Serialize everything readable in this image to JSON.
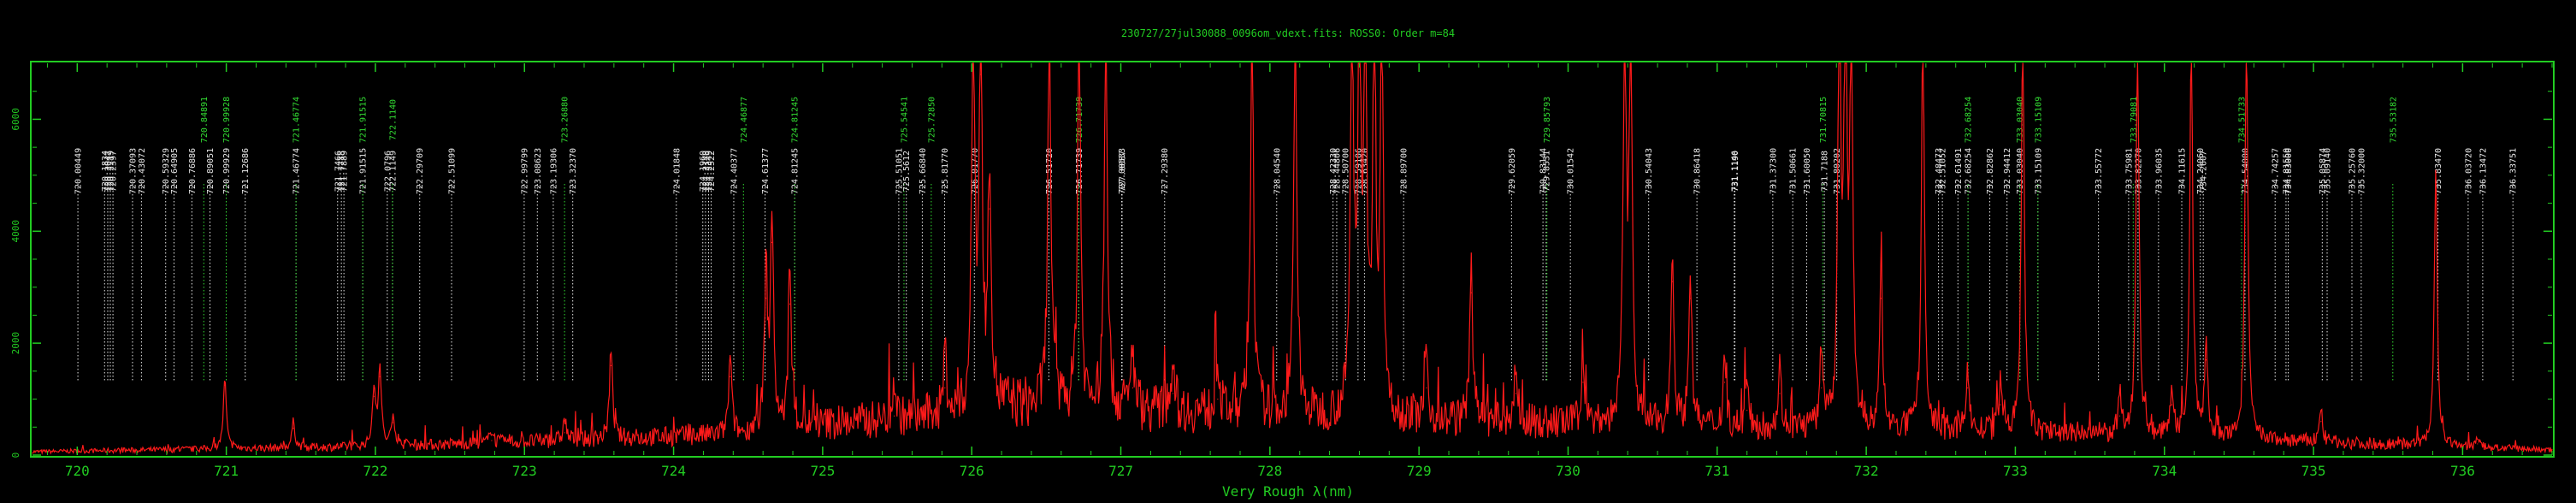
{
  "chart_data": {
    "type": "line",
    "title": "230727/27jul30088_0096om_vdext.fits: ROSS0: Order m=84",
    "xlabel": "Very Rough λ(nm)",
    "ylabel": "",
    "xlim": [
      719.7,
      736.6
    ],
    "ylim": [
      0,
      7000
    ],
    "x_ticks": [
      720,
      721,
      722,
      723,
      724,
      725,
      726,
      727,
      728,
      729,
      730,
      731,
      732,
      733,
      734,
      735,
      736
    ],
    "y_ticks": [
      0,
      2000,
      4000,
      6000
    ],
    "grid": false,
    "colors": {
      "background": "#000000",
      "frame": "#22cc22",
      "spectrum": "#ff1a1a",
      "line_white": "#e8e8e8",
      "line_green": "#33dd33"
    },
    "series": [
      {
        "name": "spectrum",
        "peaks": [
          {
            "x": 720.99,
            "y": 1250
          },
          {
            "x": 721.45,
            "y": 480
          },
          {
            "x": 721.99,
            "y": 1050
          },
          {
            "x": 722.03,
            "y": 1400
          },
          {
            "x": 722.12,
            "y": 580
          },
          {
            "x": 722.78,
            "y": 260
          },
          {
            "x": 723.27,
            "y": 400
          },
          {
            "x": 723.58,
            "y": 1600
          },
          {
            "x": 724.38,
            "y": 1400
          },
          {
            "x": 724.62,
            "y": 2800
          },
          {
            "x": 724.66,
            "y": 3800
          },
          {
            "x": 724.78,
            "y": 2700
          },
          {
            "x": 725.48,
            "y": 700
          },
          {
            "x": 725.82,
            "y": 1200
          },
          {
            "x": 726.01,
            "y": 7200
          },
          {
            "x": 726.06,
            "y": 6800
          },
          {
            "x": 726.12,
            "y": 4400
          },
          {
            "x": 726.52,
            "y": 7200
          },
          {
            "x": 726.72,
            "y": 7200
          },
          {
            "x": 726.9,
            "y": 7200
          },
          {
            "x": 727.08,
            "y": 1200
          },
          {
            "x": 727.35,
            "y": 1100
          },
          {
            "x": 727.65,
            "y": 1000
          },
          {
            "x": 727.88,
            "y": 7200
          },
          {
            "x": 728.17,
            "y": 7200
          },
          {
            "x": 728.55,
            "y": 7200
          },
          {
            "x": 728.6,
            "y": 7200
          },
          {
            "x": 728.64,
            "y": 7200
          },
          {
            "x": 728.7,
            "y": 7200
          },
          {
            "x": 728.75,
            "y": 7200
          },
          {
            "x": 729.05,
            "y": 1200
          },
          {
            "x": 729.35,
            "y": 2900
          },
          {
            "x": 729.65,
            "y": 1100
          },
          {
            "x": 730.1,
            "y": 1300
          },
          {
            "x": 730.38,
            "y": 7200
          },
          {
            "x": 730.42,
            "y": 7200
          },
          {
            "x": 730.7,
            "y": 3100
          },
          {
            "x": 730.82,
            "y": 2800
          },
          {
            "x": 731.05,
            "y": 1300
          },
          {
            "x": 731.2,
            "y": 800
          },
          {
            "x": 731.42,
            "y": 1100
          },
          {
            "x": 731.7,
            "y": 1200
          },
          {
            "x": 731.82,
            "y": 7200
          },
          {
            "x": 731.86,
            "y": 7200
          },
          {
            "x": 731.9,
            "y": 7200
          },
          {
            "x": 732.1,
            "y": 2800
          },
          {
            "x": 732.38,
            "y": 7200
          },
          {
            "x": 732.68,
            "y": 1200
          },
          {
            "x": 732.9,
            "y": 900
          },
          {
            "x": 733.05,
            "y": 7200
          },
          {
            "x": 733.7,
            "y": 700
          },
          {
            "x": 733.82,
            "y": 7200
          },
          {
            "x": 734.05,
            "y": 900
          },
          {
            "x": 734.18,
            "y": 7200
          },
          {
            "x": 734.28,
            "y": 1700
          },
          {
            "x": 734.55,
            "y": 7200
          },
          {
            "x": 735.05,
            "y": 600
          },
          {
            "x": 735.82,
            "y": 5000
          },
          {
            "x": 736.1,
            "y": 200
          }
        ]
      }
    ],
    "line_ids": [
      {
        "x": 720.00449,
        "label": "720.00449",
        "color": "white"
      },
      {
        "x": 720.1834,
        "label": "720.1834",
        "color": "white"
      },
      {
        "x": 720.2047,
        "label": "720.2047",
        "color": "white"
      },
      {
        "x": 720.2219,
        "label": "720.2219",
        "color": "white"
      },
      {
        "x": 720.2397,
        "label": "720.2397",
        "color": "white"
      },
      {
        "x": 720.37093,
        "label": "720.37093",
        "color": "white"
      },
      {
        "x": 720.43072,
        "label": "720.43072",
        "color": "white"
      },
      {
        "x": 720.59329,
        "label": "720.59329",
        "color": "white"
      },
      {
        "x": 720.64905,
        "label": "720.64905",
        "color": "white"
      },
      {
        "x": 720.76886,
        "label": "720.76886",
        "color": "white"
      },
      {
        "x": 720.84891,
        "label": "720.84891",
        "color": "green"
      },
      {
        "x": 720.89051,
        "label": "720.89051",
        "color": "white"
      },
      {
        "x": 720.99929,
        "label": "720.99929",
        "color": "white"
      },
      {
        "x": 720.99928,
        "label": "720.99928",
        "color": "green"
      },
      {
        "x": 721.12686,
        "label": "721.12686",
        "color": "white"
      },
      {
        "x": 721.46774,
        "label": "721.46774",
        "color": "white"
      },
      {
        "x": 721.46774,
        "label": "721.46774",
        "color": "green"
      },
      {
        "x": 721.7466,
        "label": "721.7466",
        "color": "white"
      },
      {
        "x": 721.7718,
        "label": "721.7718",
        "color": "white"
      },
      {
        "x": 721.7889,
        "label": "721.7889",
        "color": "white"
      },
      {
        "x": 721.91515,
        "label": "721.91515",
        "color": "white"
      },
      {
        "x": 721.91515,
        "label": "721.91515",
        "color": "green"
      },
      {
        "x": 722.0796,
        "label": "722.0796",
        "color": "white"
      },
      {
        "x": 722.1149,
        "label": "722.1149",
        "color": "white"
      },
      {
        "x": 722.114,
        "label": "722.1140",
        "color": "green"
      },
      {
        "x": 722.29709,
        "label": "722.29709",
        "color": "white"
      },
      {
        "x": 722.51099,
        "label": "722.51099",
        "color": "white"
      },
      {
        "x": 722.99799,
        "label": "722.99799",
        "color": "white"
      },
      {
        "x": 723.08623,
        "label": "723.08623",
        "color": "white"
      },
      {
        "x": 723.19306,
        "label": "723.19306",
        "color": "white"
      },
      {
        "x": 723.2688,
        "label": "723.26880",
        "color": "green"
      },
      {
        "x": 723.3237,
        "label": "723.32370",
        "color": "white"
      },
      {
        "x": 724.01848,
        "label": "724.01848",
        "color": "white"
      },
      {
        "x": 724.196,
        "label": "724.1960",
        "color": "white"
      },
      {
        "x": 724.214,
        "label": "724.2140",
        "color": "white"
      },
      {
        "x": 724.2349,
        "label": "724.2349",
        "color": "white"
      },
      {
        "x": 724.2522,
        "label": "724.2522",
        "color": "white"
      },
      {
        "x": 724.40377,
        "label": "724.40377",
        "color": "white"
      },
      {
        "x": 724.46877,
        "label": "724.46877",
        "color": "green"
      },
      {
        "x": 724.61377,
        "label": "724.61377",
        "color": "white"
      },
      {
        "x": 724.81245,
        "label": "724.81245",
        "color": "white"
      },
      {
        "x": 724.81245,
        "label": "724.81245",
        "color": "green"
      },
      {
        "x": 725.51051,
        "label": "725.51051",
        "color": "white"
      },
      {
        "x": 725.54541,
        "label": "725.54541",
        "color": "green"
      },
      {
        "x": 725.5612,
        "label": "725.5612",
        "color": "white"
      },
      {
        "x": 725.6684,
        "label": "725.66840",
        "color": "white"
      },
      {
        "x": 725.7285,
        "label": "725.72850",
        "color": "green"
      },
      {
        "x": 725.8177,
        "label": "725.81770",
        "color": "white"
      },
      {
        "x": 726.0177,
        "label": "726.01770",
        "color": "white"
      },
      {
        "x": 726.5172,
        "label": "726.51720",
        "color": "white"
      },
      {
        "x": 726.71739,
        "label": "726.71739",
        "color": "white"
      },
      {
        "x": 726.71739,
        "label": "726.71739",
        "color": "green"
      },
      {
        "x": 727.00533,
        "label": "727.00533",
        "color": "white"
      },
      {
        "x": 727.0087,
        "label": "727.0087",
        "color": "white"
      },
      {
        "x": 727.2938,
        "label": "727.29380",
        "color": "white"
      },
      {
        "x": 728.0454,
        "label": "728.04540",
        "color": "white"
      },
      {
        "x": 728.4233,
        "label": "728.42330",
        "color": "white"
      },
      {
        "x": 728.44806,
        "label": "728.44806",
        "color": "white"
      },
      {
        "x": 728.507,
        "label": "728.50700",
        "color": "white"
      },
      {
        "x": 728.59106,
        "label": "728.59106",
        "color": "white"
      },
      {
        "x": 728.6342,
        "label": "728.63420",
        "color": "white"
      },
      {
        "x": 728.897,
        "label": "728.89700",
        "color": "white"
      },
      {
        "x": 729.62059,
        "label": "729.62059",
        "color": "white"
      },
      {
        "x": 729.83144,
        "label": "729.83144",
        "color": "white"
      },
      {
        "x": 729.8531,
        "label": "729.8531",
        "color": "white"
      },
      {
        "x": 729.85793,
        "label": "729.85793",
        "color": "green"
      },
      {
        "x": 730.01542,
        "label": "730.01542",
        "color": "white"
      },
      {
        "x": 730.54043,
        "label": "730.54043",
        "color": "white"
      },
      {
        "x": 730.86418,
        "label": "730.86418",
        "color": "white"
      },
      {
        "x": 731.1146,
        "label": "731.1146",
        "color": "white"
      },
      {
        "x": 731.119,
        "label": "731.1190",
        "color": "white"
      },
      {
        "x": 731.373,
        "label": "731.37300",
        "color": "white"
      },
      {
        "x": 731.50661,
        "label": "731.50661",
        "color": "white"
      },
      {
        "x": 731.6005,
        "label": "731.60050",
        "color": "white"
      },
      {
        "x": 731.70815,
        "label": "731.70815",
        "color": "green"
      },
      {
        "x": 731.7188,
        "label": "731.7188",
        "color": "white"
      },
      {
        "x": 731.80202,
        "label": "731.80202",
        "color": "white"
      },
      {
        "x": 732.48473,
        "label": "732.48473",
        "color": "white"
      },
      {
        "x": 732.51052,
        "label": "732.51052",
        "color": "white"
      },
      {
        "x": 732.61491,
        "label": "732.61491",
        "color": "white"
      },
      {
        "x": 732.68254,
        "label": "732.68254",
        "color": "white"
      },
      {
        "x": 732.68254,
        "label": "732.68254",
        "color": "green"
      },
      {
        "x": 732.82862,
        "label": "732.82862",
        "color": "white"
      },
      {
        "x": 732.94412,
        "label": "732.94412",
        "color": "white"
      },
      {
        "x": 733.0304,
        "label": "733.03040",
        "color": "white"
      },
      {
        "x": 733.0304,
        "label": "733.03040",
        "color": "green"
      },
      {
        "x": 733.15109,
        "label": "733.15109",
        "color": "white"
      },
      {
        "x": 733.15109,
        "label": "733.15109",
        "color": "green"
      },
      {
        "x": 733.55772,
        "label": "733.55772",
        "color": "white"
      },
      {
        "x": 733.75981,
        "label": "733.75981",
        "color": "white"
      },
      {
        "x": 733.79081,
        "label": "733.79081",
        "color": "green"
      },
      {
        "x": 733.8227,
        "label": "733.82270",
        "color": "white"
      },
      {
        "x": 733.96035,
        "label": "733.96035",
        "color": "white"
      },
      {
        "x": 734.11615,
        "label": "734.11615",
        "color": "white"
      },
      {
        "x": 734.2406,
        "label": "734.24060",
        "color": "white"
      },
      {
        "x": 734.2607,
        "label": "734.2607",
        "color": "white"
      },
      {
        "x": 734.51733,
        "label": "734.51733",
        "color": "green"
      },
      {
        "x": 734.54,
        "label": "734.54000",
        "color": "white"
      },
      {
        "x": 734.74257,
        "label": "734.74257",
        "color": "white"
      },
      {
        "x": 734.8155,
        "label": "734.81550",
        "color": "white"
      },
      {
        "x": 734.83,
        "label": "734.83000",
        "color": "white"
      },
      {
        "x": 735.05874,
        "label": "735.05874",
        "color": "white"
      },
      {
        "x": 735.0914,
        "label": "735.09140",
        "color": "white"
      },
      {
        "x": 735.2576,
        "label": "735.25760",
        "color": "white"
      },
      {
        "x": 735.32,
        "label": "735.32000",
        "color": "white"
      },
      {
        "x": 735.53182,
        "label": "735.53182",
        "color": "green"
      },
      {
        "x": 735.8347,
        "label": "735.83470",
        "color": "white"
      },
      {
        "x": 736.0372,
        "label": "736.03720",
        "color": "white"
      },
      {
        "x": 736.13472,
        "label": "736.13472",
        "color": "white"
      },
      {
        "x": 736.33751,
        "label": "736.33751",
        "color": "white"
      }
    ]
  }
}
